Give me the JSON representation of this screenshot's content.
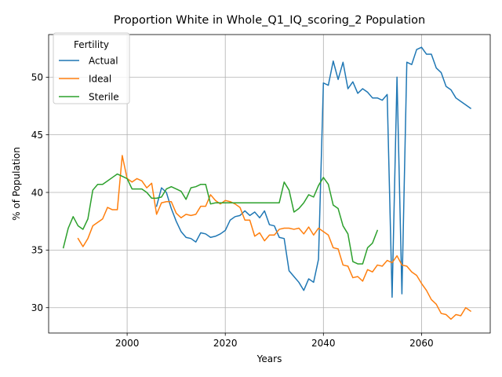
{
  "chart_data": {
    "type": "line",
    "title": "Proportion White in Whole_Q1_IQ_scoring_2 Population",
    "xlabel": "Years",
    "ylabel": "% of Population",
    "xlim": [
      1984,
      2074
    ],
    "ylim": [
      27.8,
      53.7
    ],
    "xticks": [
      2000,
      2020,
      2040,
      2060
    ],
    "yticks": [
      30,
      35,
      40,
      45,
      50
    ],
    "grid": true,
    "legend": {
      "title": "Fertility",
      "placement": "top-left"
    },
    "series": [
      {
        "name": "Actual",
        "color": "#1f77b4",
        "x": [
          2006,
          2007,
          2008,
          2009,
          2010,
          2011,
          2012,
          2013,
          2014,
          2015,
          2016,
          2017,
          2018,
          2019,
          2020,
          2021,
          2022,
          2023,
          2024,
          2025,
          2026,
          2027,
          2028,
          2029,
          2030,
          2031,
          2032,
          2033,
          2034,
          2035,
          2036,
          2037,
          2038,
          2039,
          2040,
          2041,
          2042,
          2043,
          2044,
          2045,
          2046,
          2047,
          2048,
          2049,
          2050,
          2051,
          2052,
          2053,
          2054,
          2055,
          2056,
          2057,
          2058,
          2059,
          2060,
          2061,
          2062,
          2063,
          2064,
          2065,
          2066,
          2067,
          2068,
          2069,
          2070
        ],
        "y": [
          38.8,
          40.4,
          40.0,
          38.6,
          37.5,
          36.6,
          36.1,
          36.0,
          35.7,
          36.5,
          36.4,
          36.1,
          36.2,
          36.4,
          36.7,
          37.6,
          37.9,
          38.0,
          38.4,
          38.0,
          38.3,
          37.8,
          38.4,
          37.2,
          37.1,
          36.1,
          36.0,
          33.2,
          32.7,
          32.2,
          31.5,
          32.5,
          32.2,
          34.2,
          49.5,
          49.3,
          51.4,
          49.8,
          51.3,
          49.0,
          49.6,
          48.6,
          49.0,
          48.7,
          48.2,
          48.2,
          48.0,
          48.5,
          30.9,
          50.0,
          31.2,
          51.3,
          51.1,
          52.4,
          52.6,
          52.0,
          52.0,
          50.8,
          50.4,
          49.2,
          48.9,
          48.2,
          47.9,
          47.6,
          47.3
        ]
      },
      {
        "name": "Ideal",
        "color": "#ff7f0e",
        "x": [
          1990,
          1991,
          1992,
          1993,
          1994,
          1995,
          1996,
          1997,
          1998,
          1999,
          2000,
          2001,
          2002,
          2003,
          2004,
          2005,
          2006,
          2007,
          2008,
          2009,
          2010,
          2011,
          2012,
          2013,
          2014,
          2015,
          2016,
          2017,
          2018,
          2019,
          2020,
          2021,
          2022,
          2023,
          2024,
          2025,
          2026,
          2027,
          2028,
          2029,
          2030,
          2031,
          2032,
          2033,
          2034,
          2035,
          2036,
          2037,
          2038,
          2039,
          2040,
          2041,
          2042,
          2043,
          2044,
          2045,
          2046,
          2047,
          2048,
          2049,
          2050,
          2051,
          2052,
          2053,
          2054,
          2055,
          2056,
          2057,
          2058,
          2059,
          2060,
          2061,
          2062,
          2063,
          2064,
          2065,
          2066,
          2067,
          2068,
          2069,
          2070
        ],
        "y": [
          36.0,
          35.3,
          36.0,
          37.1,
          37.4,
          37.7,
          38.7,
          38.5,
          38.5,
          43.2,
          41.2,
          40.9,
          41.2,
          41.0,
          40.4,
          40.8,
          38.1,
          39.1,
          39.2,
          39.2,
          38.2,
          37.8,
          38.1,
          38.0,
          38.1,
          38.8,
          38.8,
          39.8,
          39.3,
          39.0,
          39.3,
          39.2,
          39.0,
          38.7,
          37.6,
          37.6,
          36.2,
          36.5,
          35.8,
          36.3,
          36.3,
          36.8,
          36.9,
          36.9,
          36.8,
          36.9,
          36.4,
          37.0,
          36.3,
          36.9,
          36.6,
          36.3,
          35.2,
          35.1,
          33.7,
          33.6,
          32.6,
          32.7,
          32.3,
          33.3,
          33.1,
          33.7,
          33.6,
          34.1,
          33.9,
          34.5,
          33.7,
          33.6,
          33.1,
          32.8,
          32.1,
          31.5,
          30.7,
          30.3,
          29.5,
          29.4,
          29.0,
          29.4,
          29.3,
          30.0,
          29.7
        ]
      },
      {
        "name": "Sterile",
        "color": "#2ca02c",
        "x": [
          1987,
          1988,
          1989,
          1990,
          1991,
          1992,
          1993,
          1994,
          1995,
          1996,
          1997,
          1998,
          1999,
          2000,
          2001,
          2002,
          2003,
          2004,
          2005,
          2006,
          2007,
          2008,
          2009,
          2010,
          2011,
          2012,
          2013,
          2014,
          2015,
          2016,
          2017,
          2018,
          2019,
          2020,
          2021,
          2022,
          2023,
          2024,
          2025,
          2026,
          2027,
          2028,
          2029,
          2030,
          2031,
          2032,
          2033,
          2034,
          2035,
          2036,
          2037,
          2038,
          2039,
          2040,
          2041,
          2042,
          2043,
          2044,
          2045,
          2046,
          2047,
          2048,
          2049,
          2050,
          2051
        ],
        "y": [
          35.2,
          36.9,
          37.9,
          37.1,
          36.8,
          37.7,
          40.2,
          40.7,
          40.7,
          41.0,
          41.3,
          41.6,
          41.4,
          41.2,
          40.3,
          40.3,
          40.3,
          40.0,
          39.5,
          39.5,
          39.6,
          40.3,
          40.5,
          40.3,
          40.1,
          39.4,
          40.4,
          40.5,
          40.7,
          40.7,
          39.0,
          39.1,
          39.1,
          39.1,
          39.1,
          39.1,
          39.1,
          39.1,
          39.1,
          39.1,
          39.1,
          39.1,
          39.1,
          39.1,
          39.1,
          40.9,
          40.2,
          38.3,
          38.6,
          39.1,
          39.8,
          39.6,
          40.6,
          41.3,
          40.7,
          38.9,
          38.6,
          37.1,
          36.4,
          34.0,
          33.8,
          33.8,
          35.2,
          35.6,
          36.7
        ]
      }
    ]
  }
}
